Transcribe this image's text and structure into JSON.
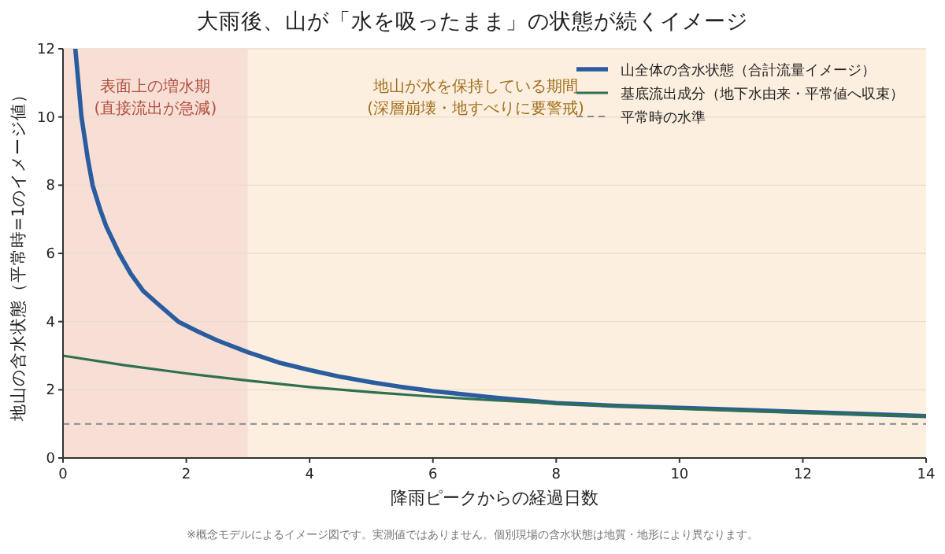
{
  "chart_data": {
    "type": "line",
    "title": "大雨後、山が「水を吸ったまま」の状態が続くイメージ",
    "xlabel": "降雨ピークからの経過日数",
    "ylabel": "地山の含水状態（平常時=1のイメージ値）",
    "xlim": [
      0,
      14
    ],
    "xticks": [
      0,
      2,
      4,
      6,
      8,
      10,
      12,
      14
    ],
    "ylim": [
      0,
      12
    ],
    "yticks": [
      0,
      2,
      4,
      6,
      8,
      10,
      12
    ],
    "grid": "y",
    "legend": "top right",
    "line_style": "solid",
    "marker": "none",
    "series": [
      {
        "name": "山全体の含水状態（合計流量イメージ）",
        "color": "#2a5d9f",
        "x": [
          0.2,
          0.25,
          0.3,
          0.4,
          0.48,
          0.6,
          0.7,
          0.91,
          1.1,
          1.3,
          1.55,
          1.87,
          2.2,
          2.5,
          3,
          3.5,
          4,
          4.5,
          5,
          5.5,
          6,
          7,
          8,
          9,
          10,
          11,
          12,
          13,
          14
        ],
        "values": [
          12,
          11,
          10,
          8.8,
          8,
          7.3,
          6.8,
          6,
          5.4,
          4.9,
          4.5,
          4,
          3.7,
          3.45,
          3.1,
          2.8,
          2.58,
          2.38,
          2.22,
          2.08,
          1.96,
          1.77,
          1.61,
          1.53,
          1.47,
          1.41,
          1.35,
          1.29,
          1.23
        ]
      },
      {
        "name": "基底流出成分（地下水由来・平常値へ収束）",
        "color": "#2e7050",
        "x": [
          0,
          1,
          2,
          3,
          4,
          5,
          6,
          7,
          8,
          10,
          12,
          14
        ],
        "values": [
          3.0,
          2.72,
          2.48,
          2.27,
          2.08,
          1.93,
          1.8,
          1.69,
          1.6,
          1.45,
          1.33,
          1.22
        ]
      }
    ],
    "ref_lines": [
      {
        "axis": "y",
        "value": 1,
        "label": "平常時の水準",
        "color": "#888888",
        "line_style": "dashed"
      }
    ],
    "bands": [
      {
        "axis": "x",
        "from": 0,
        "to": 3,
        "label": "表面上の増水期\n(直接流出が急減)",
        "color": "#f8dfd5"
      },
      {
        "axis": "x",
        "from": 3,
        "to": 14,
        "label": "地山が水を保持している期間\n(深層崩壊・地すべりに要警戒)",
        "color": "#fdefdf"
      }
    ],
    "annotations": [
      "※概念モデルによるイメージ図です。実測値ではありません。個別現場の含水状態は地質・地形により異なります。"
    ]
  }
}
